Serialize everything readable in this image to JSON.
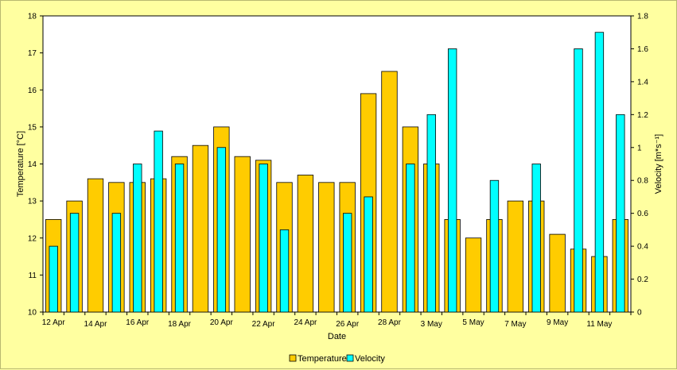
{
  "chart_data": {
    "type": "bar",
    "categories": [
      "12 Apr",
      "13 Apr",
      "14 Apr",
      "15 Apr",
      "16 Apr",
      "17 Apr",
      "18 Apr",
      "19 Apr",
      "20 Apr",
      "21 Apr",
      "22 Apr",
      "23 Apr",
      "24 Apr",
      "25 Apr",
      "26 Apr",
      "27 Apr",
      "28 Apr",
      "29 Apr",
      "3 May",
      "4 May",
      "5 May",
      "6 May",
      "7 May",
      "8 May",
      "9 May",
      "10 May",
      "11 May",
      "12 May"
    ],
    "x_tick_labels": [
      "12 Apr",
      "14 Apr",
      "16 Apr",
      "18 Apr",
      "20 Apr",
      "22 Apr",
      "24 Apr",
      "26 Apr",
      "28 Apr",
      "3 May",
      "5 May",
      "7 May",
      "9 May",
      "11 May"
    ],
    "series": [
      {
        "name": "Temperature",
        "axis": "left",
        "color": "#ffcc00",
        "values": [
          12.5,
          13.0,
          13.6,
          13.5,
          13.5,
          13.6,
          14.2,
          14.5,
          15.0,
          14.2,
          14.1,
          13.5,
          13.7,
          13.5,
          13.5,
          15.9,
          16.5,
          15.0,
          14.0,
          12.5,
          12.0,
          12.5,
          13.0,
          13.0,
          12.1,
          11.7,
          11.5,
          12.5
        ]
      },
      {
        "name": "Velocity",
        "axis": "right",
        "color": "#00ffff",
        "values": [
          0.4,
          0.6,
          null,
          0.6,
          0.9,
          1.1,
          0.9,
          null,
          1.0,
          null,
          0.9,
          0.5,
          null,
          null,
          0.6,
          0.7,
          null,
          0.9,
          1.2,
          1.6,
          null,
          0.8,
          null,
          0.9,
          null,
          1.6,
          1.7,
          1.2
        ]
      }
    ],
    "xlabel": "Date",
    "ylabel": "Temperature [°C]",
    "y2label": "Velocity [m*s⁻¹]",
    "ylim": [
      10,
      18
    ],
    "y2lim": [
      0,
      1.8
    ],
    "yticks": [
      "10",
      "11",
      "12",
      "13",
      "14",
      "15",
      "16",
      "17",
      "18"
    ],
    "y2ticks": [
      "0",
      "0.2",
      "0.4",
      "0.6",
      "0.8",
      "1",
      "1.2",
      "1.4",
      "1.6",
      "1.8"
    ],
    "grid": false,
    "legend": "bottom-center",
    "plot_background": "#ffffff",
    "page_background": "#ffffa0"
  }
}
